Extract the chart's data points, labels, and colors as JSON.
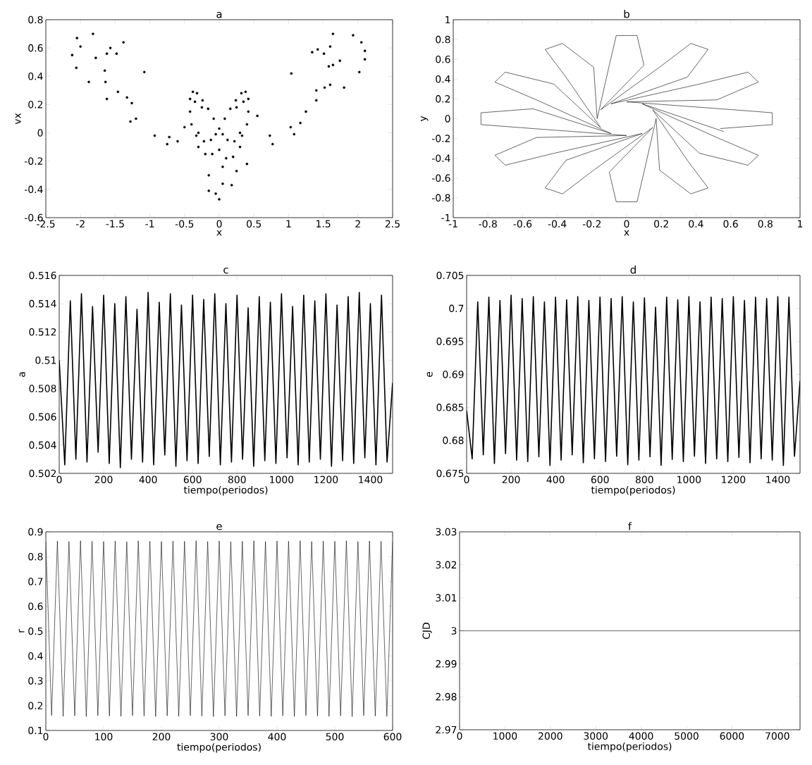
{
  "chart_data": [
    {
      "type": "scatter",
      "title": "a",
      "xlabel": "x",
      "ylabel": "vx",
      "xlim": [
        -2.5,
        2.5
      ],
      "ylim": [
        -0.6,
        0.8
      ],
      "xticks": [
        -2.5,
        -2,
        -1.5,
        -1,
        -0.5,
        0,
        0.5,
        1,
        1.5,
        2,
        2.5
      ],
      "yticks": [
        -0.6,
        -0.4,
        -0.2,
        0,
        0.2,
        0.4,
        0.6,
        0.8
      ],
      "series": [
        {
          "color": "#000000",
          "x": [
            0,
            0.08,
            0.16,
            0.24,
            0.32,
            0.38,
            0.42,
            0.42,
            0.4,
            0.33,
            0.22,
            0.12,
            0.05,
            -0.08,
            -0.16,
            -0.24,
            -0.32,
            -0.38,
            -0.42,
            -0.42,
            -0.4,
            -0.33,
            -0.22,
            -0.12,
            -0.05,
            0.25,
            0.35,
            -0.25,
            -0.35,
            0.3,
            -0.3,
            -0.2,
            -0.1,
            0.1,
            0.2,
            0,
            0.3,
            -0.3,
            0.4,
            0.05,
            0.25,
            -0.15,
            0.05,
            0.18,
            -0.15,
            -0.05,
            0,
            -2.12,
            -2.06,
            -2.05,
            -2.0,
            -1.82,
            -1.78,
            -1.88,
            -1.65,
            -1.62,
            -1.57,
            -1.64,
            -1.62,
            -1.48,
            -1.38,
            -1.46,
            -1.33,
            -1.26,
            -1.28,
            -1.2,
            -1.08,
            -0.93,
            -0.72,
            -0.75,
            -0.6,
            -0.5,
            2.1,
            2.1,
            2.05,
            1.93,
            2.02,
            1.64,
            1.6,
            1.42,
            1.34,
            1.51,
            1.58,
            1.64,
            1.74,
            1.6,
            1.52,
            1.4,
            1.4,
            1.8,
            1.25,
            1.17,
            1.04,
            1.03,
            1.08,
            0.73,
            0.77,
            0.55
          ],
          "values": [
            0.03,
            0.1,
            0.17,
            0.23,
            0.28,
            0.29,
            0.24,
            0.15,
            0.06,
            -0.02,
            -0.06,
            -0.05,
            -0.01,
            0.1,
            0.17,
            0.23,
            0.28,
            0.29,
            0.24,
            0.15,
            0.06,
            -0.02,
            -0.06,
            -0.05,
            -0.01,
            0.18,
            0.22,
            0.18,
            0.22,
            0.0,
            0.0,
            -0.15,
            -0.15,
            -0.18,
            -0.17,
            -0.12,
            -0.1,
            -0.1,
            -0.22,
            -0.24,
            -0.27,
            -0.3,
            -0.36,
            -0.37,
            -0.41,
            -0.43,
            -0.47,
            0.55,
            0.46,
            0.67,
            0.61,
            0.7,
            0.53,
            0.36,
            0.44,
            0.56,
            0.6,
            0.36,
            0.24,
            0.56,
            0.64,
            0.29,
            0.25,
            0.21,
            0.08,
            0.1,
            0.43,
            -0.02,
            -0.03,
            -0.08,
            -0.06,
            0.04,
            0.52,
            0.58,
            0.64,
            0.69,
            0.43,
            0.7,
            0.61,
            0.59,
            0.57,
            0.56,
            0.47,
            0.48,
            0.51,
            0.34,
            0.32,
            0.3,
            0.23,
            0.32,
            0.15,
            0.07,
            0.42,
            0.04,
            -0.01,
            -0.02,
            -0.08,
            0.12
          ]
        }
      ]
    },
    {
      "type": "line",
      "title": "b",
      "xlabel": "x",
      "ylabel": "y",
      "xlim": [
        -1,
        1
      ],
      "ylim": [
        -1,
        1
      ],
      "xticks": [
        -1,
        -0.8,
        -0.6,
        -0.4,
        -0.2,
        0,
        0.2,
        0.4,
        0.6,
        0.8,
        1
      ],
      "yticks": [
        -1,
        -0.8,
        -0.6,
        -0.4,
        -0.2,
        0,
        0.2,
        0.4,
        0.6,
        0.8,
        1
      ],
      "series": [
        {
          "color": "#000000",
          "x": [
            0.54,
            0.84,
            0.84,
            0.54,
            0,
            0.52,
            0.76,
            0.7,
            0.42,
            -0.09,
            0.35,
            0.47,
            0.37,
            0.19,
            -0.15,
            0.1,
            0.06,
            -0.06,
            -0.1,
            -0.17,
            -0.19,
            -0.37,
            -0.47,
            -0.35,
            -0.15,
            -0.42,
            -0.7,
            -0.76,
            -0.52,
            -0.09,
            -0.54,
            -0.84,
            -0.84,
            -0.54,
            0,
            -0.52,
            -0.76,
            -0.7,
            -0.42,
            0.09,
            -0.35,
            -0.47,
            -0.37,
            -0.19,
            0.15,
            -0.1,
            -0.06,
            0.06,
            0.1,
            0.17,
            0.19,
            0.37,
            0.47,
            0.35,
            0.15,
            0.42,
            0.7,
            0.76,
            0.52,
            0.09,
            0.56
          ],
          "values": [
            -0.1,
            -0.06,
            0.06,
            0.1,
            0.17,
            0.19,
            0.37,
            0.47,
            0.35,
            0.15,
            0.42,
            0.7,
            0.76,
            0.52,
            0.09,
            0.54,
            0.84,
            0.84,
            0.54,
            0,
            0.52,
            0.76,
            0.7,
            0.42,
            -0.09,
            0.35,
            0.47,
            0.37,
            0.19,
            -0.15,
            0.1,
            0.06,
            -0.06,
            -0.1,
            -0.17,
            -0.19,
            -0.37,
            -0.47,
            -0.35,
            -0.15,
            -0.42,
            -0.7,
            -0.76,
            -0.52,
            -0.09,
            -0.54,
            -0.84,
            -0.84,
            -0.54,
            0,
            -0.52,
            -0.76,
            -0.7,
            -0.42,
            0.09,
            -0.35,
            -0.47,
            -0.37,
            -0.19,
            0.15,
            -0.13
          ]
        }
      ]
    },
    {
      "type": "line",
      "title": "c",
      "xlabel": "tiempo(periodos)",
      "ylabel": "a",
      "xlim": [
        0,
        1500
      ],
      "ylim": [
        0.502,
        0.516
      ],
      "xticks": [
        0,
        200,
        400,
        600,
        800,
        1000,
        1200,
        1400
      ],
      "yticks": [
        0.502,
        0.504,
        0.506,
        0.508,
        0.51,
        0.512,
        0.514,
        0.516
      ],
      "series": [
        {
          "color": "#000000",
          "x": [
            0,
            25,
            50,
            75,
            100,
            125,
            150,
            175,
            200,
            225,
            250,
            275,
            300,
            325,
            350,
            375,
            400,
            425,
            450,
            475,
            500,
            525,
            550,
            575,
            600,
            625,
            650,
            675,
            700,
            725,
            750,
            775,
            800,
            825,
            850,
            875,
            900,
            925,
            950,
            975,
            1000,
            1025,
            1050,
            1075,
            1100,
            1125,
            1150,
            1175,
            1200,
            1225,
            1250,
            1275,
            1300,
            1325,
            1350,
            1375,
            1400,
            1425,
            1450,
            1475,
            1500
          ],
          "values": [
            0.51,
            0.5026,
            0.5142,
            0.503,
            0.5147,
            0.5028,
            0.5138,
            0.5035,
            0.5146,
            0.5027,
            0.514,
            0.5024,
            0.5145,
            0.503,
            0.5136,
            0.5028,
            0.5148,
            0.5026,
            0.5141,
            0.5033,
            0.5147,
            0.5025,
            0.5139,
            0.5029,
            0.5146,
            0.5027,
            0.5143,
            0.5032,
            0.5147,
            0.5026,
            0.514,
            0.5028,
            0.5146,
            0.503,
            0.5137,
            0.5025,
            0.5145,
            0.5029,
            0.5141,
            0.5027,
            0.5147,
            0.5031,
            0.5138,
            0.5026,
            0.5146,
            0.5028,
            0.5142,
            0.503,
            0.5147,
            0.5025,
            0.5139,
            0.5029,
            0.5145,
            0.5027,
            0.5148,
            0.5031,
            0.514,
            0.5026,
            0.5146,
            0.5028,
            0.5084
          ]
        }
      ]
    },
    {
      "type": "line",
      "title": "d",
      "xlabel": "tiempo(periodos)",
      "ylabel": "e",
      "xlim": [
        0,
        1500
      ],
      "ylim": [
        0.675,
        0.705
      ],
      "xticks": [
        0,
        200,
        400,
        600,
        800,
        1000,
        1200,
        1400
      ],
      "yticks": [
        0.675,
        0.68,
        0.685,
        0.69,
        0.695,
        0.7,
        0.705
      ],
      "series": [
        {
          "color": "#000000",
          "x": [
            0,
            25,
            50,
            75,
            100,
            125,
            150,
            175,
            200,
            225,
            250,
            275,
            300,
            325,
            350,
            375,
            400,
            425,
            450,
            475,
            500,
            525,
            550,
            575,
            600,
            625,
            650,
            675,
            700,
            725,
            750,
            775,
            800,
            825,
            850,
            875,
            900,
            925,
            950,
            975,
            1000,
            1025,
            1050,
            1075,
            1100,
            1125,
            1150,
            1175,
            1200,
            1225,
            1250,
            1275,
            1300,
            1325,
            1350,
            1375,
            1400,
            1425,
            1450,
            1475,
            1500
          ],
          "values": [
            0.6845,
            0.6772,
            0.701,
            0.6778,
            0.7017,
            0.6765,
            0.7012,
            0.678,
            0.702,
            0.677,
            0.7015,
            0.6768,
            0.7018,
            0.6775,
            0.701,
            0.6762,
            0.7017,
            0.677,
            0.7013,
            0.6778,
            0.7018,
            0.6766,
            0.7012,
            0.6772,
            0.7017,
            0.6768,
            0.7015,
            0.6776,
            0.7018,
            0.6763,
            0.701,
            0.677,
            0.7016,
            0.6775,
            0.7002,
            0.6762,
            0.7017,
            0.6771,
            0.7013,
            0.6768,
            0.7018,
            0.6776,
            0.701,
            0.6765,
            0.7017,
            0.6772,
            0.7015,
            0.6768,
            0.7018,
            0.6774,
            0.7012,
            0.6766,
            0.7017,
            0.6772,
            0.7015,
            0.677,
            0.7018,
            0.6762,
            0.7017,
            0.6776,
            0.689
          ]
        }
      ]
    },
    {
      "type": "line",
      "title": "e",
      "xlabel": "tiempo(periodos)",
      "ylabel": "r",
      "xlim": [
        0,
        600
      ],
      "ylim": [
        0.1,
        0.9
      ],
      "xticks": [
        0,
        100,
        200,
        300,
        400,
        500,
        600
      ],
      "yticks": [
        0.1,
        0.2,
        0.3,
        0.4,
        0.5,
        0.6,
        0.7,
        0.8,
        0.9
      ],
      "series": [
        {
          "color": "#000000",
          "x": [
            0,
            10,
            20,
            30,
            40,
            50,
            60,
            70,
            80,
            90,
            100,
            110,
            120,
            130,
            140,
            150,
            160,
            170,
            180,
            190,
            200,
            210,
            220,
            230,
            240,
            250,
            260,
            270,
            280,
            290,
            300,
            310,
            320,
            330,
            340,
            350,
            360,
            370,
            380,
            390,
            400,
            410,
            420,
            430,
            440,
            450,
            460,
            470,
            480,
            490,
            500,
            510,
            520,
            530,
            540,
            550,
            560,
            570,
            580,
            590,
            600
          ],
          "values": [
            0.86,
            0.16,
            0.863,
            0.157,
            0.861,
            0.159,
            0.864,
            0.156,
            0.862,
            0.16,
            0.861,
            0.158,
            0.863,
            0.157,
            0.86,
            0.16,
            0.864,
            0.158,
            0.862,
            0.156,
            0.861,
            0.159,
            0.863,
            0.157,
            0.862,
            0.16,
            0.864,
            0.158,
            0.861,
            0.156,
            0.863,
            0.159,
            0.86,
            0.157,
            0.862,
            0.16,
            0.864,
            0.158,
            0.861,
            0.157,
            0.863,
            0.159,
            0.862,
            0.156,
            0.864,
            0.16,
            0.861,
            0.158,
            0.863,
            0.157,
            0.862,
            0.159,
            0.864,
            0.156,
            0.861,
            0.16,
            0.863,
            0.158,
            0.862,
            0.157,
            0.86
          ]
        }
      ]
    },
    {
      "type": "line",
      "title": "f",
      "xlabel": "tiempo(periodos)",
      "ylabel": "CJD",
      "xlim": [
        0,
        7500
      ],
      "ylim": [
        2.97,
        3.03
      ],
      "xticks": [
        0,
        1000,
        2000,
        3000,
        4000,
        5000,
        6000,
        7000
      ],
      "yticks": [
        2.97,
        2.98,
        2.99,
        3,
        3.01,
        3.02,
        3.03
      ],
      "series": [
        {
          "color": "#000000",
          "x": [
            0,
            7500
          ],
          "values": [
            3,
            3
          ]
        }
      ]
    }
  ]
}
